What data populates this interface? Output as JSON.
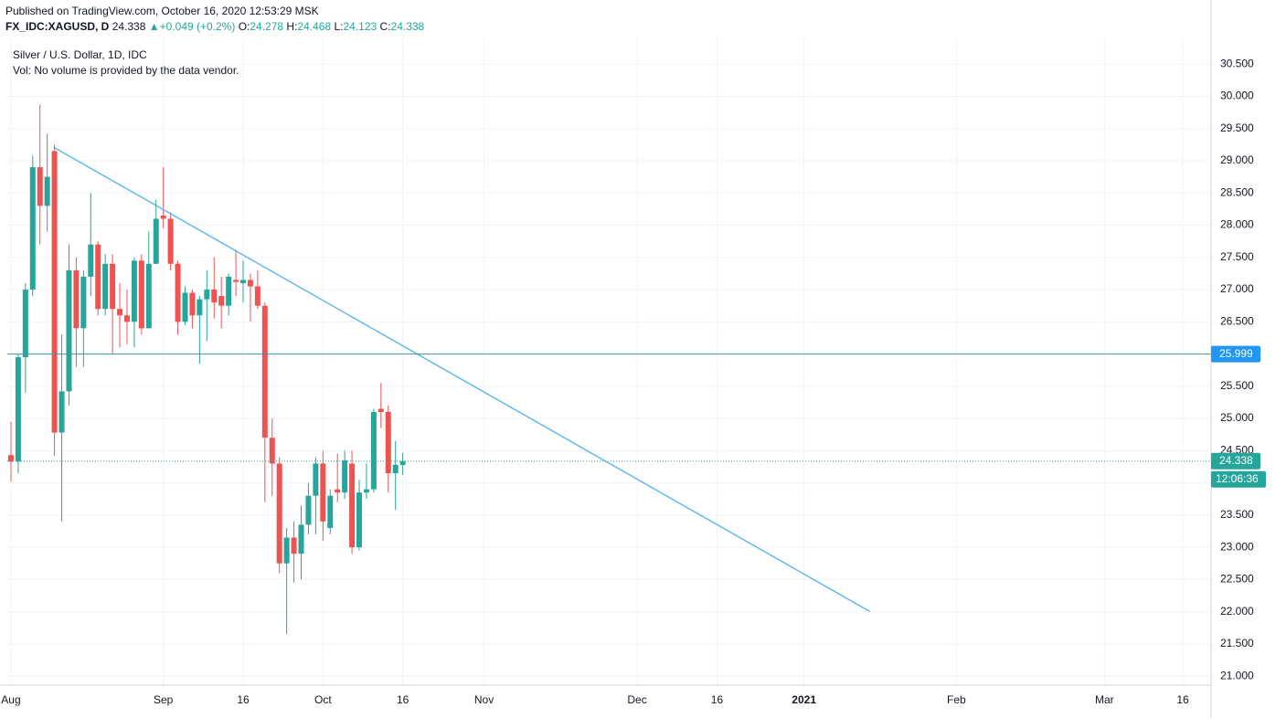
{
  "published": "Published on TradingView.com, October 16, 2020 12:53:29 MSK",
  "chart_data": {
    "type": "candlestick",
    "symbol": "FX_IDC:XAGUSD, D",
    "change_arrow": "▲",
    "change": "+0.049 (+0.2%)",
    "ohlc_labels": [
      "O:",
      "H:",
      "L:",
      "C:"
    ],
    "title": "Silver / U.S. Dollar, 1D, IDC",
    "subtitle": "Vol: No volume is provided by the data vendor.",
    "countdown": "12:06:36",
    "up_color": "#26a69a",
    "down_color": "#ef5350",
    "grid": true,
    "open": [
      24.43,
      24.33,
      25.95,
      27.0,
      28.9,
      28.3,
      29.15,
      24.78,
      25.42,
      27.3,
      26.4,
      27.2,
      27.7,
      26.7,
      27.4,
      26.7,
      26.6,
      26.5,
      27.45,
      26.4,
      27.4,
      28.15,
      28.1,
      27.4,
      26.5,
      26.95,
      26.6,
      26.85,
      27.0,
      26.9,
      26.75,
      27.15,
      27.1,
      27.15,
      27.05,
      26.75,
      24.7,
      24.3,
      22.75,
      23.15,
      22.9,
      23.35,
      23.8,
      24.3,
      23.3,
      23.9,
      23.85,
      24.3,
      23.0,
      23.85,
      23.9,
      25.15,
      25.1,
      24.15,
      24.278
    ],
    "high": [
      24.95,
      26.0,
      27.1,
      29.08,
      29.87,
      29.42,
      29.25,
      26.3,
      27.7,
      27.5,
      27.3,
      28.5,
      27.75,
      27.55,
      27.55,
      27.1,
      27.0,
      27.5,
      27.55,
      27.9,
      28.4,
      28.9,
      28.2,
      27.45,
      27.05,
      27.0,
      26.9,
      27.3,
      27.5,
      27.2,
      27.25,
      27.62,
      27.45,
      27.25,
      27.3,
      26.8,
      25.0,
      24.4,
      23.3,
      23.4,
      23.65,
      24.0,
      24.4,
      24.5,
      23.9,
      24.45,
      24.5,
      24.5,
      24.05,
      24.3,
      25.15,
      25.55,
      25.2,
      24.65,
      24.468
    ],
    "low": [
      24.02,
      24.15,
      25.4,
      26.9,
      27.7,
      27.9,
      24.42,
      23.4,
      25.2,
      25.8,
      25.8,
      26.9,
      26.6,
      26.6,
      26.0,
      26.1,
      26.15,
      26.1,
      26.3,
      26.4,
      27.4,
      27.95,
      27.3,
      26.3,
      26.45,
      26.4,
      25.85,
      26.2,
      26.55,
      26.4,
      26.6,
      26.9,
      26.8,
      26.5,
      26.7,
      23.7,
      23.8,
      22.6,
      21.65,
      22.45,
      22.5,
      23.2,
      23.2,
      23.1,
      23.2,
      23.7,
      23.75,
      22.9,
      22.95,
      23.75,
      23.85,
      24.85,
      23.85,
      23.58,
      24.123
    ],
    "close": [
      24.33,
      25.95,
      27.0,
      28.9,
      28.3,
      28.75,
      24.78,
      25.42,
      27.3,
      26.4,
      27.2,
      27.7,
      26.7,
      27.4,
      26.7,
      26.6,
      26.5,
      27.45,
      26.4,
      27.4,
      28.1,
      28.1,
      27.4,
      26.5,
      26.95,
      26.6,
      26.85,
      27.0,
      26.8,
      26.75,
      27.2,
      27.12,
      27.15,
      27.05,
      26.75,
      24.7,
      24.3,
      22.75,
      23.15,
      22.9,
      23.35,
      23.8,
      24.3,
      23.4,
      23.8,
      23.85,
      24.35,
      23.0,
      23.85,
      23.9,
      25.1,
      25.1,
      24.15,
      24.28,
      24.338
    ],
    "xlim": [
      -0.5,
      165.4
    ],
    "xticks": [
      {
        "value": 0,
        "label": "Aug"
      },
      {
        "value": 21,
        "label": "Sep"
      },
      {
        "value": 32,
        "label": "16"
      },
      {
        "value": 43,
        "label": "Oct"
      },
      {
        "value": 54,
        "label": "16"
      },
      {
        "value": 65.2,
        "label": "Nov"
      },
      {
        "value": 86.3,
        "label": "Dec"
      },
      {
        "value": 97.3,
        "label": "16"
      },
      {
        "value": 109.3,
        "label": "2021"
      },
      {
        "value": 130.3,
        "label": "Feb"
      },
      {
        "value": 150.7,
        "label": "Mar"
      },
      {
        "value": 161.5,
        "label": "16"
      }
    ],
    "ylim": [
      20.86,
      30.9
    ],
    "yticks": [
      {
        "value": 21,
        "label": "21.000"
      },
      {
        "value": 21.5,
        "label": "21.500"
      },
      {
        "value": 22,
        "label": "22.000"
      },
      {
        "value": 22.5,
        "label": "22.500"
      },
      {
        "value": 23,
        "label": "23.000"
      },
      {
        "value": 23.5,
        "label": "23.500"
      },
      {
        "value": 24,
        "label": "24.000"
      },
      {
        "value": 24.5,
        "label": "24.500"
      },
      {
        "value": 25,
        "label": "25.000"
      },
      {
        "value": 25.5,
        "label": "25.500"
      },
      {
        "value": 26,
        "label": "26.000"
      },
      {
        "value": 26.5,
        "label": "26.500"
      },
      {
        "value": 27,
        "label": "27.000"
      },
      {
        "value": 27.5,
        "label": "27.500"
      },
      {
        "value": 28,
        "label": "28.000"
      },
      {
        "value": 28.5,
        "label": "28.500"
      },
      {
        "value": 29,
        "label": "29.000"
      },
      {
        "value": 29.5,
        "label": "29.500"
      },
      {
        "value": 30,
        "label": "30.000"
      },
      {
        "value": 30.5,
        "label": "30.500"
      }
    ],
    "trendline": {
      "x": [
        6.05,
        118.4
      ],
      "y": [
        29.2,
        22.0
      ],
      "color": "#4fb0ee"
    },
    "hline": {
      "value": 25.999,
      "color": "#3f93a8",
      "label_color": "#2196f3"
    }
  }
}
